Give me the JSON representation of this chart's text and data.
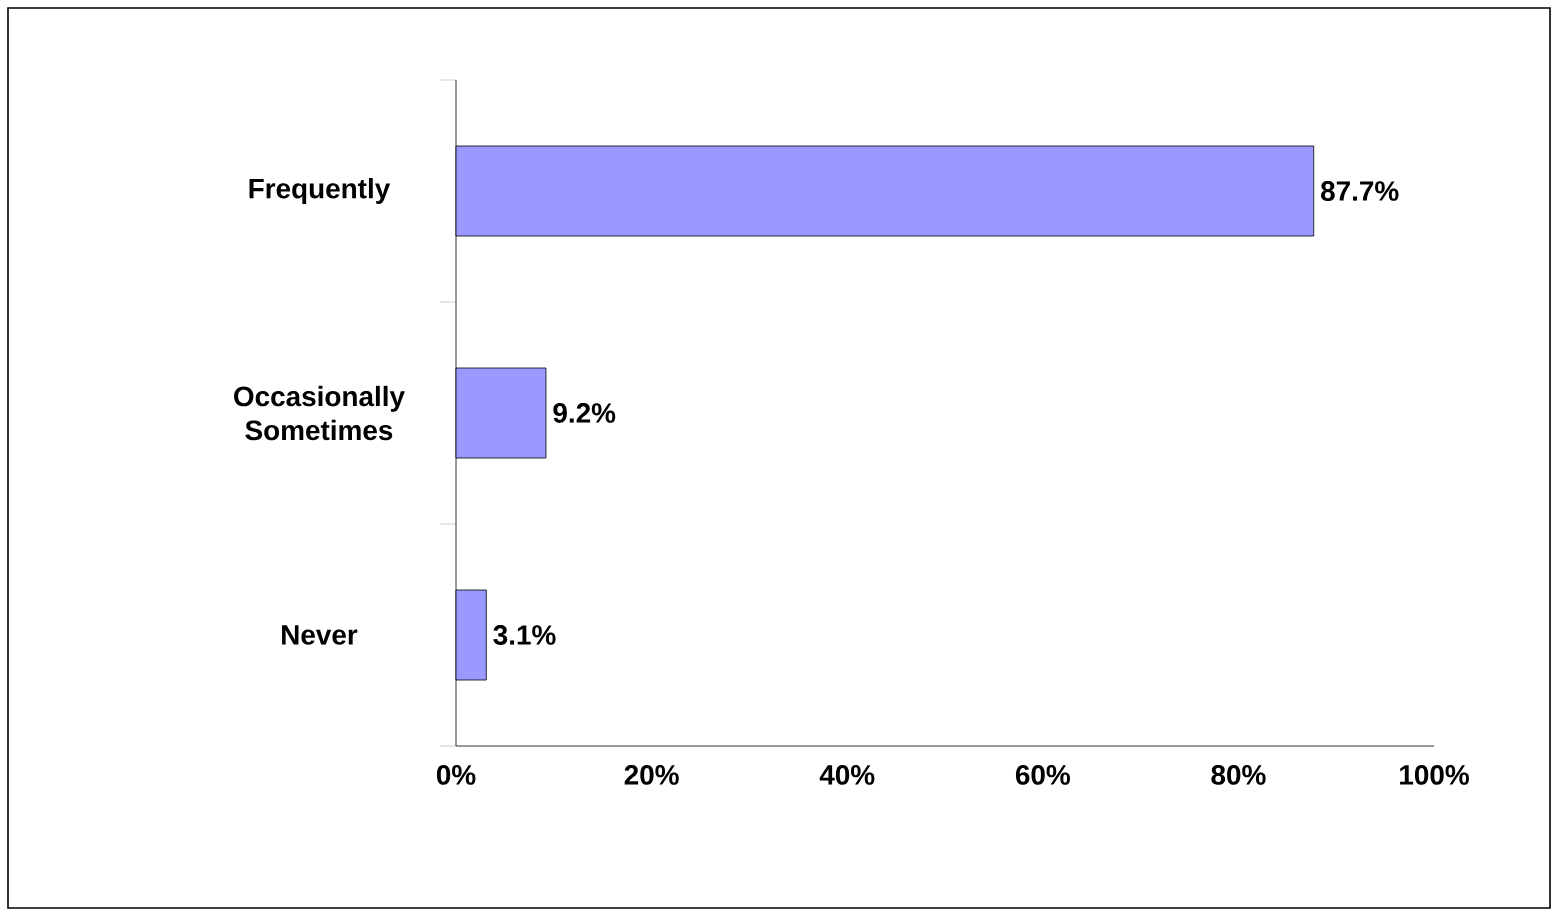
{
  "chart_data": {
    "type": "bar",
    "orientation": "horizontal",
    "categories": [
      "Frequently",
      "Occasionally Sometimes",
      "Never"
    ],
    "values": [
      87.7,
      9.2,
      3.1
    ],
    "value_labels": [
      "87.7%",
      "9.2%",
      "3.1%"
    ],
    "color": "#9999ff",
    "xlim": [
      0,
      100
    ],
    "xticks": [
      {
        "value": 0,
        "label": "0%"
      },
      {
        "value": 20,
        "label": "20%"
      },
      {
        "value": 40,
        "label": "40%"
      },
      {
        "value": 60,
        "label": "60%"
      },
      {
        "value": 80,
        "label": "80%"
      },
      {
        "value": 100,
        "label": "100%"
      }
    ]
  }
}
